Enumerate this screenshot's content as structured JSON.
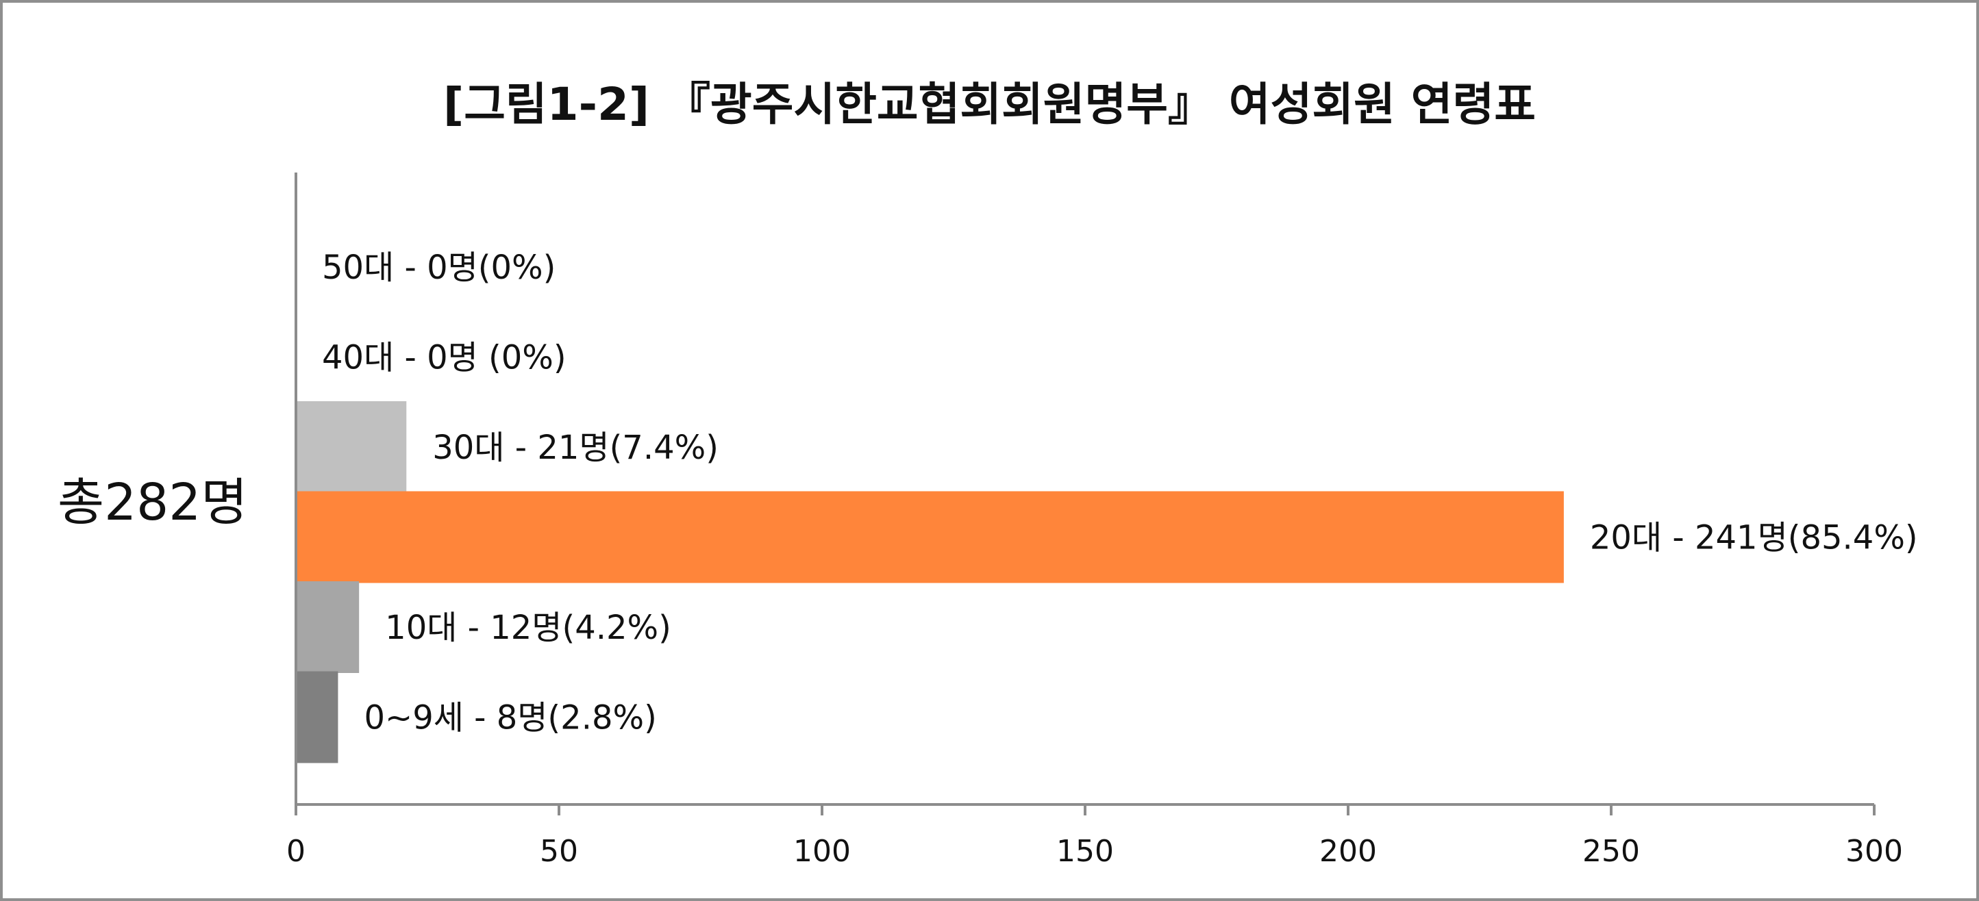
{
  "title": "[그림1-2] 『광주시한교협회회원명부』 여성회원 연령표",
  "total_label": "총282명",
  "chart_data": {
    "type": "bar",
    "orientation": "horizontal",
    "title": "[그림1-2] 『광주시한교협회회원명부』 여성회원 연령표",
    "xlim": [
      0,
      300
    ],
    "x_ticks": [
      0,
      50,
      100,
      150,
      200,
      250,
      300
    ],
    "grid": false,
    "legend": "none",
    "categories": [
      "50대",
      "40대",
      "30대",
      "20대",
      "10대",
      "0~9세"
    ],
    "values": [
      0,
      0,
      21,
      241,
      12,
      8
    ],
    "data_labels": [
      "50대 - 0명(0%)",
      "40대 - 0명 (0%)",
      "30대 - 21명(7.4%)",
      "20대 - 241명(85.4%)",
      "10대 - 12명(4.2%)",
      "0~9세 - 8명(2.8%)"
    ],
    "colors": [
      "#c0c0c0",
      "#c0c0c0",
      "#c0c0c0",
      "#ff853a",
      "#a6a6a6",
      "#808080"
    ]
  }
}
